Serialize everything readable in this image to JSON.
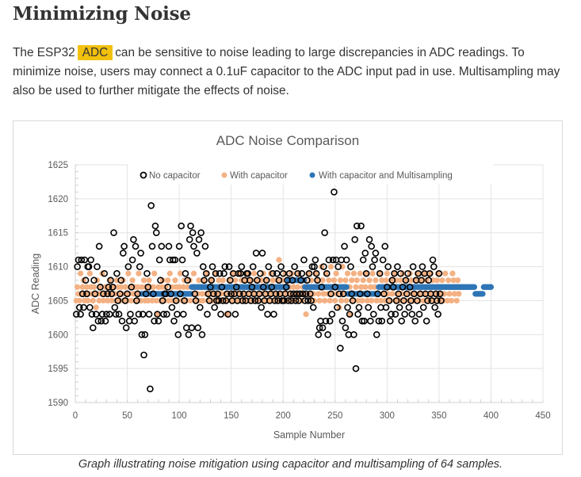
{
  "heading": "Minimizing Noise",
  "paragraph": {
    "before": "The ESP32",
    "highlight": "ADC",
    "after": "can be sensitive to noise leading to large discrepancies in ADC readings. To minimize noise, users may connect a 0.1uF capacitor to the ADC input pad in use. Multisampling may also be used to further mitigate the effects of noise."
  },
  "caption": "Graph illustrating noise mitigation using capacitor and multisampling of 64 samples.",
  "colors": {
    "no_capacitor": "#000000",
    "with_capacitor": "#f4b183",
    "multisampling": "#2e75b6",
    "highlight": "#f2c10f"
  },
  "chart_data": {
    "type": "scatter",
    "title": "ADC Noise Comparison",
    "xlabel": "Sample Number",
    "ylabel": "ADC Reading",
    "xlim": [
      0,
      450
    ],
    "ylim": [
      1590,
      1625
    ],
    "xticks": [
      0,
      50,
      100,
      150,
      200,
      250,
      300,
      350,
      400,
      450
    ],
    "yticks": [
      1590,
      1595,
      1600,
      1605,
      1610,
      1615,
      1620,
      1625
    ],
    "grid": true,
    "legend": {
      "position": "top-inside",
      "entries": [
        "No capacitor",
        "With capacitor",
        "With capacitor and Multisampling"
      ]
    },
    "series": [
      {
        "name": "No capacitor",
        "marker": "hollow-circle",
        "x_start": 1,
        "x_step": 1,
        "y": [
          1603,
          1610,
          1611,
          1604,
          1603,
          1611,
          1606,
          1604,
          1611,
          1608,
          1606,
          1610,
          1610,
          1604,
          1611,
          1603,
          1601,
          1608,
          1606,
          1603,
          1610,
          1602,
          1613,
          1607,
          1602,
          1603,
          1606,
          1609,
          1602,
          1603,
          1606,
          1607,
          1603,
          1608,
          1606,
          1607,
          1615,
          1604,
          1603,
          1609,
          1605,
          1603,
          1606,
          1608,
          1602,
          1612,
          1613,
          1605,
          1601,
          1606,
          1610,
          1602,
          1603,
          1607,
          1611,
          1614,
          1602,
          1613,
          1605,
          1606,
          1603,
          1610,
          1612,
          1600,
          1603,
          1597,
          1600,
          1606,
          1609,
          1607,
          1603,
          1592,
          1619,
          1613,
          1606,
          1602,
          1616,
          1615,
          1603,
          1602,
          1611,
          1608,
          1613,
          1605,
          1603,
          1606,
          1606,
          1603,
          1607,
          1613,
          1611,
          1606,
          1604,
          1611,
          1602,
          1611,
          1605,
          1603,
          1600,
          1613,
          1606,
          1616,
          1611,
          1603,
          1605,
          1609,
          1601,
          1608,
          1600,
          1614,
          1616,
          1601,
          1615,
          1613,
          1606,
          1605,
          1612,
          1601,
          1614,
          1604,
          1615,
          1600,
          1610,
          1608,
          1613,
          1609,
          1603,
          1606,
          1605,
          1607,
          1608,
          1610,
          1606,
          1604,
          1609,
          1605,
          1606,
          1605,
          1609,
          1603,
          1607,
          1605,
          1609,
          1610,
          1605,
          1606,
          1603,
          1610,
          1608,
          1606,
          1605,
          1609,
          1606,
          1603,
          1607,
          1605,
          1609,
          1606,
          1609,
          1610,
          1605,
          1606,
          1608,
          1605,
          1609,
          1609,
          1606,
          1608,
          1605,
          1607,
          1610,
          1606,
          1605,
          1612,
          1608,
          1605,
          1606,
          1609,
          1604,
          1612,
          1607,
          1605,
          1606,
          1608,
          1603,
          1610,
          1605,
          1606,
          1607,
          1609,
          1603,
          1605,
          1606,
          1609,
          1605,
          1608,
          1606,
          1610,
          1605,
          1609,
          1605,
          1606,
          1607,
          1608,
          1605,
          1609,
          1606,
          1605,
          1608,
          1606,
          1610,
          1605,
          1606,
          1609,
          1605,
          1606,
          1608,
          1609,
          1606,
          1611,
          1605,
          1606,
          1608,
          1605,
          1609,
          1606,
          1605,
          1610,
          1604,
          1610,
          1611,
          1609,
          1608,
          1600,
          1601,
          1602,
          1607,
          1601,
          1610,
          1615,
          1602,
          1609,
          1600,
          1611,
          1602,
          1606,
          1603,
          1611,
          1621,
          1607,
          1611,
          1604,
          1610,
          1606,
          1598,
          1611,
          1602,
          1606,
          1613,
          1601,
          1611,
          1604,
          1600,
          1603,
          1610,
          1606,
          1605,
          1600,
          1614,
          1595,
          1616,
          1603,
          1604,
          1606,
          1616,
          1602,
          1611,
          1602,
          1612,
          1609,
          1606,
          1604,
          1614,
          1602,
          1613,
          1610,
          1603,
          1611,
          1612,
          1600,
          1606,
          1602,
          1609,
          1604,
          1602,
          1611,
          1606,
          1613,
          1604,
          1607,
          1610,
          1605,
          1602,
          1603,
          1608,
          1607,
          1609,
          1603,
          1605,
          1610,
          1606,
          1604,
          1609,
          1602,
          1607,
          1605,
          1603,
          1608,
          1606,
          1609,
          1604,
          1607,
          1605,
          1603,
          1610,
          1606,
          1602,
          1608,
          1605,
          1609,
          1603,
          1606,
          1608,
          1610,
          1604,
          1609,
          1606,
          1602,
          1605,
          1608,
          1609,
          1606,
          1605,
          1611,
          1610,
          1604,
          1606,
          1605,
          1603,
          1609,
          1606,
          1605
        ],
        "note": "values estimated from plot"
      },
      {
        "name": "With capacitor",
        "marker": "filled-circle",
        "x_start": 1,
        "x_step": 1,
        "y": [
          1605,
          1607,
          1606,
          1605,
          1609,
          1606,
          1607,
          1608,
          1605,
          1606,
          1607,
          1605,
          1606,
          1609,
          1607,
          1606,
          1605,
          1607,
          1606,
          1604,
          1608,
          1606,
          1605,
          1607,
          1606,
          1609,
          1605,
          1606,
          1607,
          1606,
          1605,
          1607,
          1608,
          1606,
          1605,
          1606,
          1607,
          1606,
          1605,
          1608,
          1607,
          1606,
          1605,
          1607,
          1606,
          1608,
          1605,
          1607,
          1606,
          1605,
          1609,
          1606,
          1607,
          1605,
          1608,
          1606,
          1607,
          1606,
          1605,
          1607,
          1609,
          1606,
          1605,
          1607,
          1606,
          1608,
          1605,
          1607,
          1606,
          1605,
          1608,
          1607,
          1606,
          1605,
          1607,
          1609,
          1606,
          1605,
          1603,
          1607,
          1606,
          1605,
          1607,
          1608,
          1606,
          1605,
          1607,
          1606,
          1608,
          1605,
          1609,
          1606,
          1607,
          1605,
          1606,
          1608,
          1607,
          1605,
          1606,
          1607,
          1609,
          1606,
          1605,
          1607,
          1608,
          1606,
          1605,
          1607,
          1606,
          1608,
          1605,
          1606,
          1607,
          1609,
          1606,
          1605,
          1607,
          1606,
          1608,
          1605,
          1607,
          1606,
          1605,
          1608,
          1607,
          1606,
          1609,
          1605,
          1607,
          1606,
          1608,
          1605,
          1606,
          1607,
          1609,
          1606,
          1605,
          1608,
          1607,
          1606,
          1605,
          1608,
          1607,
          1606,
          1605,
          1603,
          1607,
          1608,
          1606,
          1605,
          1609,
          1607,
          1606,
          1608,
          1605,
          1607,
          1606,
          1609,
          1605,
          1608,
          1607,
          1606,
          1605,
          1608,
          1607,
          1609,
          1606,
          1605,
          1608,
          1607,
          1606,
          1609,
          1605,
          1608,
          1607,
          1606,
          1605,
          1607,
          1608,
          1606,
          1609,
          1605,
          1607,
          1608,
          1606,
          1605,
          1607,
          1609,
          1606,
          1608,
          1605,
          1607,
          1606,
          1608,
          1605,
          1611,
          1607,
          1606,
          1608,
          1605,
          1607,
          1609,
          1606,
          1605,
          1608,
          1607,
          1606,
          1609,
          1605,
          1607,
          1608,
          1606,
          1605,
          1607,
          1609,
          1606,
          1608,
          1605,
          1607,
          1606,
          1608,
          1603,
          1607,
          1609,
          1606,
          1605,
          1608,
          1607,
          1606,
          1605,
          1609,
          1607,
          1608,
          1606,
          1605,
          1607,
          1610,
          1608,
          1606,
          1605,
          1609,
          1607,
          1606,
          1608,
          1605,
          1610,
          1606,
          1607,
          1608,
          1605,
          1609,
          1606,
          1607,
          1604,
          1608,
          1605,
          1610,
          1607,
          1606,
          1608,
          1605,
          1609,
          1606,
          1607,
          1603,
          1608,
          1605,
          1609,
          1606,
          1607,
          1608,
          1605,
          1606,
          1609,
          1607,
          1605,
          1608,
          1606,
          1607,
          1609,
          1605,
          1606,
          1608,
          1607,
          1605,
          1609,
          1606,
          1607,
          1608,
          1605,
          1606,
          1607,
          1609,
          1605,
          1608,
          1606,
          1607,
          1605,
          1608,
          1609,
          1606,
          1607,
          1605,
          1608,
          1606,
          1607,
          1609,
          1605,
          1608,
          1606,
          1607,
          1605,
          1608,
          1606,
          1609,
          1607,
          1605,
          1608,
          1606,
          1607,
          1605,
          1609,
          1608,
          1606,
          1607,
          1605,
          1608,
          1606,
          1609,
          1607,
          1605,
          1606,
          1608,
          1607,
          1605,
          1609,
          1606,
          1608,
          1607,
          1605,
          1606,
          1609,
          1607,
          1608,
          1605,
          1606,
          1607,
          1608,
          1609,
          1605,
          1606,
          1607,
          1608,
          1605,
          1606,
          1609,
          1607,
          1605,
          1608,
          1606,
          1607,
          1605,
          1609,
          1608,
          1606,
          1607,
          1605,
          1608,
          1606,
          1607
        ],
        "note": "values estimated from plot"
      },
      {
        "name": "With capacitor and Multisampling",
        "marker": "filled-circle",
        "segments": [
          {
            "x_from": 64,
            "x_to": 111,
            "y": 1606
          },
          {
            "x_from": 112,
            "x_to": 204,
            "y": 1607
          },
          {
            "x_from": 205,
            "x_to": 220,
            "y": 1608
          },
          {
            "x_from": 221,
            "x_to": 261,
            "y": 1607
          },
          {
            "x_from": 262,
            "x_to": 291,
            "y": 1606
          },
          {
            "x_from": 292,
            "x_to": 384,
            "y": 1607
          },
          {
            "x_from": 385,
            "x_to": 392,
            "y": 1606
          },
          {
            "x_from": 393,
            "x_to": 400,
            "y": 1607
          }
        ]
      }
    ]
  }
}
